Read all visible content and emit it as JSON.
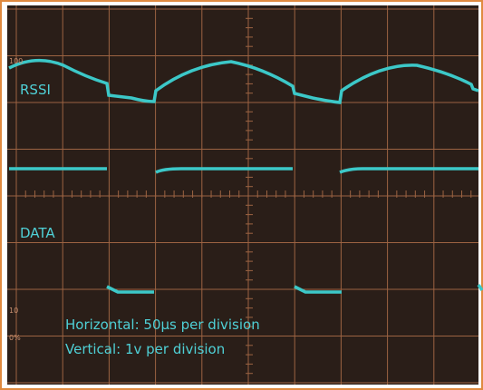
{
  "screen": {
    "trace_labels": [
      "RSSI",
      "DATA"
    ],
    "scale_marks": [
      "100",
      "10",
      "0%"
    ],
    "settings": [
      "Horizontal: 50µs per division",
      "Vertical: 1v per division"
    ]
  }
}
